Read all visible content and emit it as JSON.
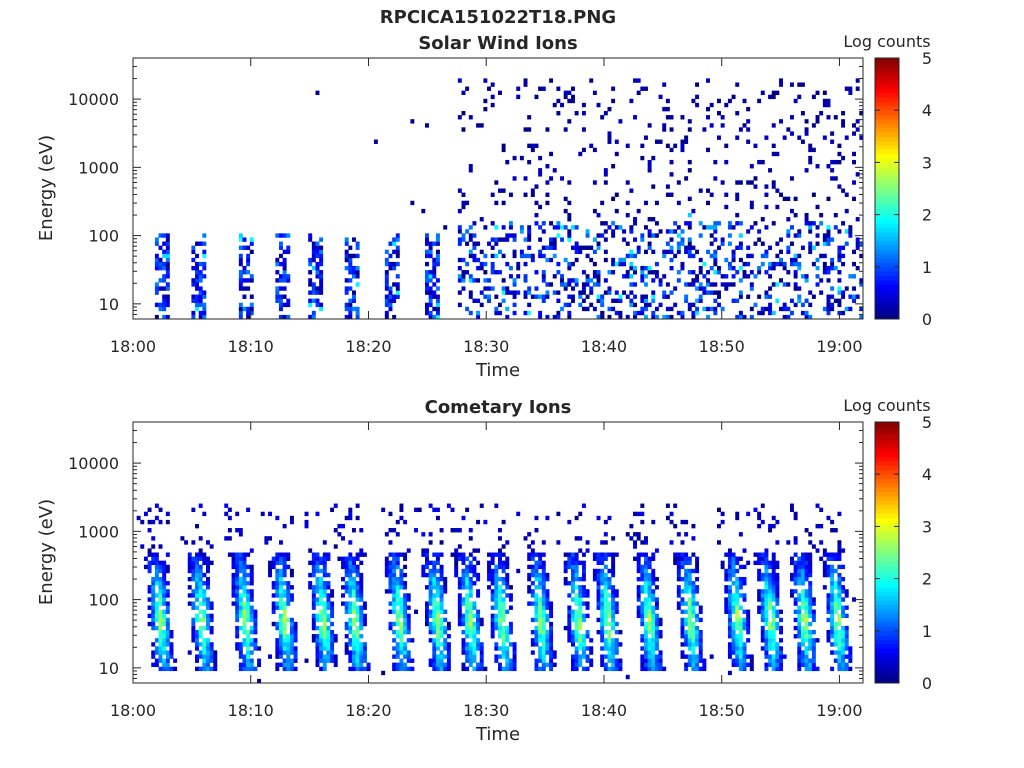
{
  "figure": {
    "title": "RPCICA151022T18.PNG"
  },
  "chart_data": [
    {
      "type": "heatmap",
      "title": "Solar Wind Ions",
      "xlabel": "Time",
      "ylabel": "Energy (eV)",
      "x_ticks": [
        "18:00",
        "18:10",
        "18:20",
        "18:30",
        "18:40",
        "18:50",
        "19:00"
      ],
      "x_range": [
        "18:00",
        "19:02"
      ],
      "y_scale": "log",
      "y_ticks": [
        10,
        100,
        1000,
        10000
      ],
      "y_tick_labels": [
        "10",
        "100",
        "1000",
        "10000"
      ],
      "y_range": [
        6,
        40000
      ],
      "colorbar": {
        "label": "Log counts",
        "range": [
          0,
          5
        ],
        "ticks": [
          "0",
          "1",
          "2",
          "3",
          "4",
          "5"
        ],
        "colormap": "jet"
      },
      "bursts_minutes": [
        2.5,
        5.5,
        9.5,
        12.8,
        15.5,
        18.5,
        22.0,
        25.5
      ],
      "continuous_from_minutes": 27.5,
      "dominant_energy_ev": [
        10,
        100
      ],
      "typical_log_counts": [
        0,
        1.5
      ],
      "max_log_counts": 2.0
    },
    {
      "type": "heatmap",
      "title": "Cometary Ions",
      "xlabel": "Time",
      "ylabel": "Energy (eV)",
      "x_ticks": [
        "18:00",
        "18:10",
        "18:20",
        "18:30",
        "18:40",
        "18:50",
        "19:00"
      ],
      "x_range": [
        "18:00",
        "19:02"
      ],
      "y_scale": "log",
      "y_ticks": [
        10,
        100,
        1000,
        10000
      ],
      "y_tick_labels": [
        "10",
        "100",
        "1000",
        "10000"
      ],
      "y_range": [
        6,
        40000
      ],
      "colorbar": {
        "label": "Log counts",
        "range": [
          0,
          5
        ],
        "ticks": [
          "0",
          "1",
          "2",
          "3",
          "4",
          "5"
        ],
        "colormap": "jet"
      },
      "bursts_minutes": [
        2.0,
        5.5,
        9.2,
        12.5,
        15.8,
        18.5,
        22.3,
        25.5,
        28.3,
        31.0,
        34.3,
        37.5,
        40.0,
        43.5,
        47.0,
        51.0,
        53.8,
        56.7,
        59.5
      ],
      "dominant_energy_ev": [
        20,
        300
      ],
      "typical_log_counts": [
        0.5,
        2.8
      ],
      "max_log_counts": 3.0
    }
  ]
}
